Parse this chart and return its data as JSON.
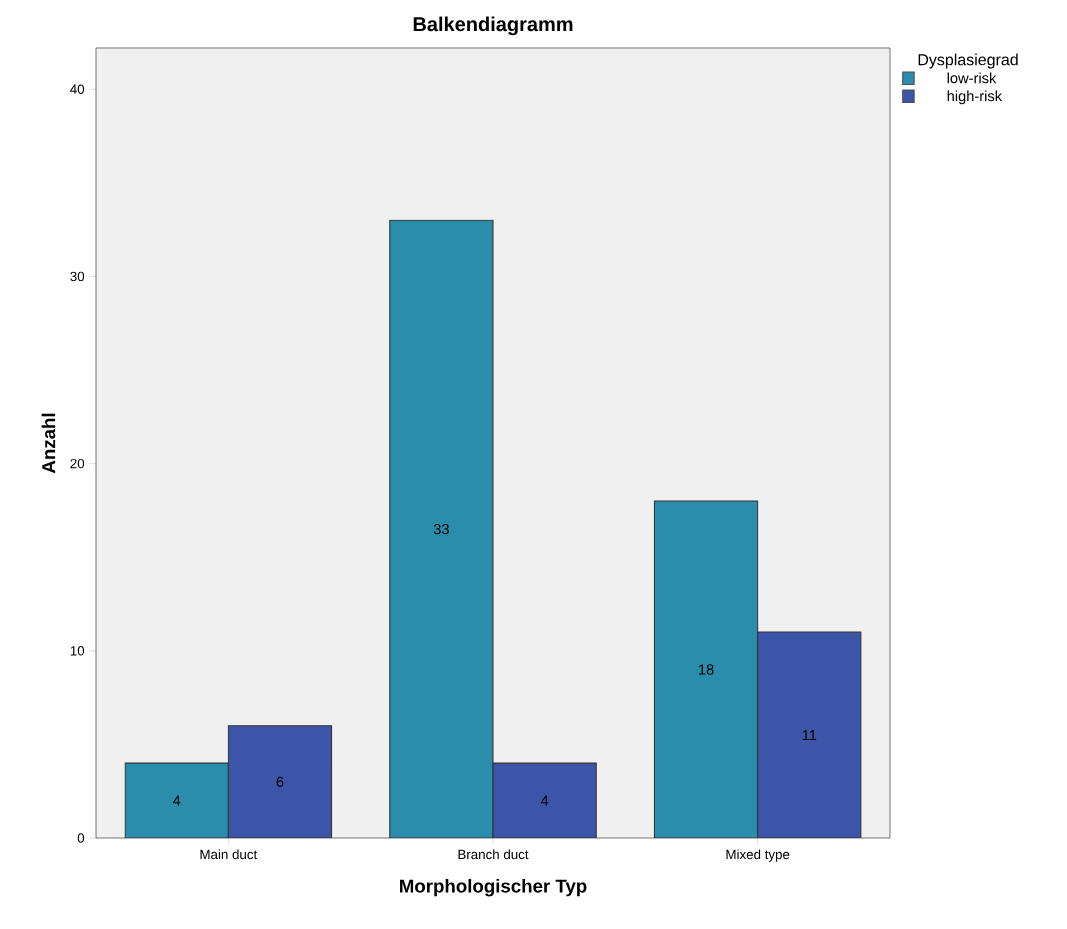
{
  "chart_data": {
    "type": "bar",
    "title": "Balkendiagramm",
    "xlabel": "Morphologischer Typ",
    "ylabel": "Anzahl",
    "legend_title": "Dysplasiegrad",
    "categories": [
      "Main duct",
      "Branch duct",
      "Mixed type"
    ],
    "series": [
      {
        "name": "low-risk",
        "color": "#2a8dab",
        "values": [
          4,
          33,
          18
        ]
      },
      {
        "name": "high-risk",
        "color": "#3d55a8",
        "values": [
          6,
          4,
          11
        ]
      }
    ],
    "ylim": [
      0,
      42.2
    ],
    "yticks": [
      0,
      10,
      20,
      30,
      40
    ],
    "data_labels": true,
    "legend": "top right",
    "grid": false
  }
}
